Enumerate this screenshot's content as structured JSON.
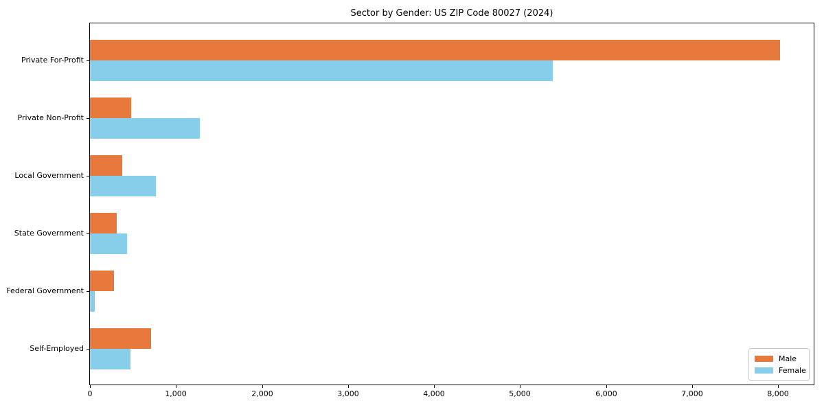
{
  "chart_data": {
    "type": "bar",
    "orientation": "horizontal",
    "title": "Sector by Gender: US ZIP Code 80027 (2024)",
    "categories": [
      "Private For-Profit",
      "Private Non-Profit",
      "Local Government",
      "State Government",
      "Federal Government",
      "Self-Employed"
    ],
    "series": [
      {
        "name": "Male",
        "color": "#e8793d",
        "values": [
          8020,
          480,
          375,
          310,
          280,
          710
        ]
      },
      {
        "name": "Female",
        "color": "#87ceeb",
        "values": [
          5380,
          1280,
          765,
          430,
          55,
          470
        ]
      }
    ],
    "xlim": [
      0,
      8420
    ],
    "x_ticks": [
      0,
      1000,
      2000,
      3000,
      4000,
      5000,
      6000,
      7000,
      8000
    ],
    "x_tick_labels": [
      "0",
      "1,000",
      "2,000",
      "3,000",
      "4,000",
      "5,000",
      "6,000",
      "7,000",
      "8,000"
    ],
    "xlabel": "",
    "ylabel": "",
    "grid": false,
    "legend": {
      "position": "lower right",
      "entries": [
        "Male",
        "Female"
      ]
    },
    "axis_color": "#000000",
    "background_color": "#ffffff"
  }
}
